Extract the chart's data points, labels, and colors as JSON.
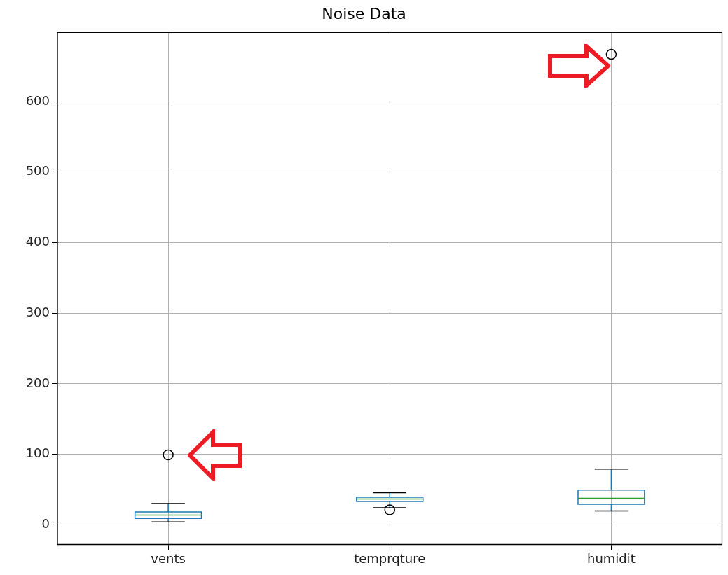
{
  "chart_data": {
    "type": "box",
    "title": "Noise Data",
    "categories": [
      "vents",
      "temprqture",
      "humidit"
    ],
    "color": "#1f77b4",
    "marker": "circle",
    "boxes": [
      {
        "low": 4,
        "q1": 9,
        "median": 13.5,
        "q3": 18,
        "high": 30,
        "outliers": [
          99
        ]
      },
      {
        "low": 24,
        "q1": 33,
        "median": 36.5,
        "q3": 39,
        "high": 45.5,
        "outliers": [
          21
        ]
      },
      {
        "low": 19.5,
        "q1": 29,
        "median": 37.5,
        "q3": 49,
        "high": 79,
        "outliers": [
          667
        ]
      }
    ],
    "ylim": [
      -28,
      698
    ],
    "yticks": [
      0,
      100,
      200,
      300,
      400,
      500,
      600
    ],
    "grid": true
  }
}
